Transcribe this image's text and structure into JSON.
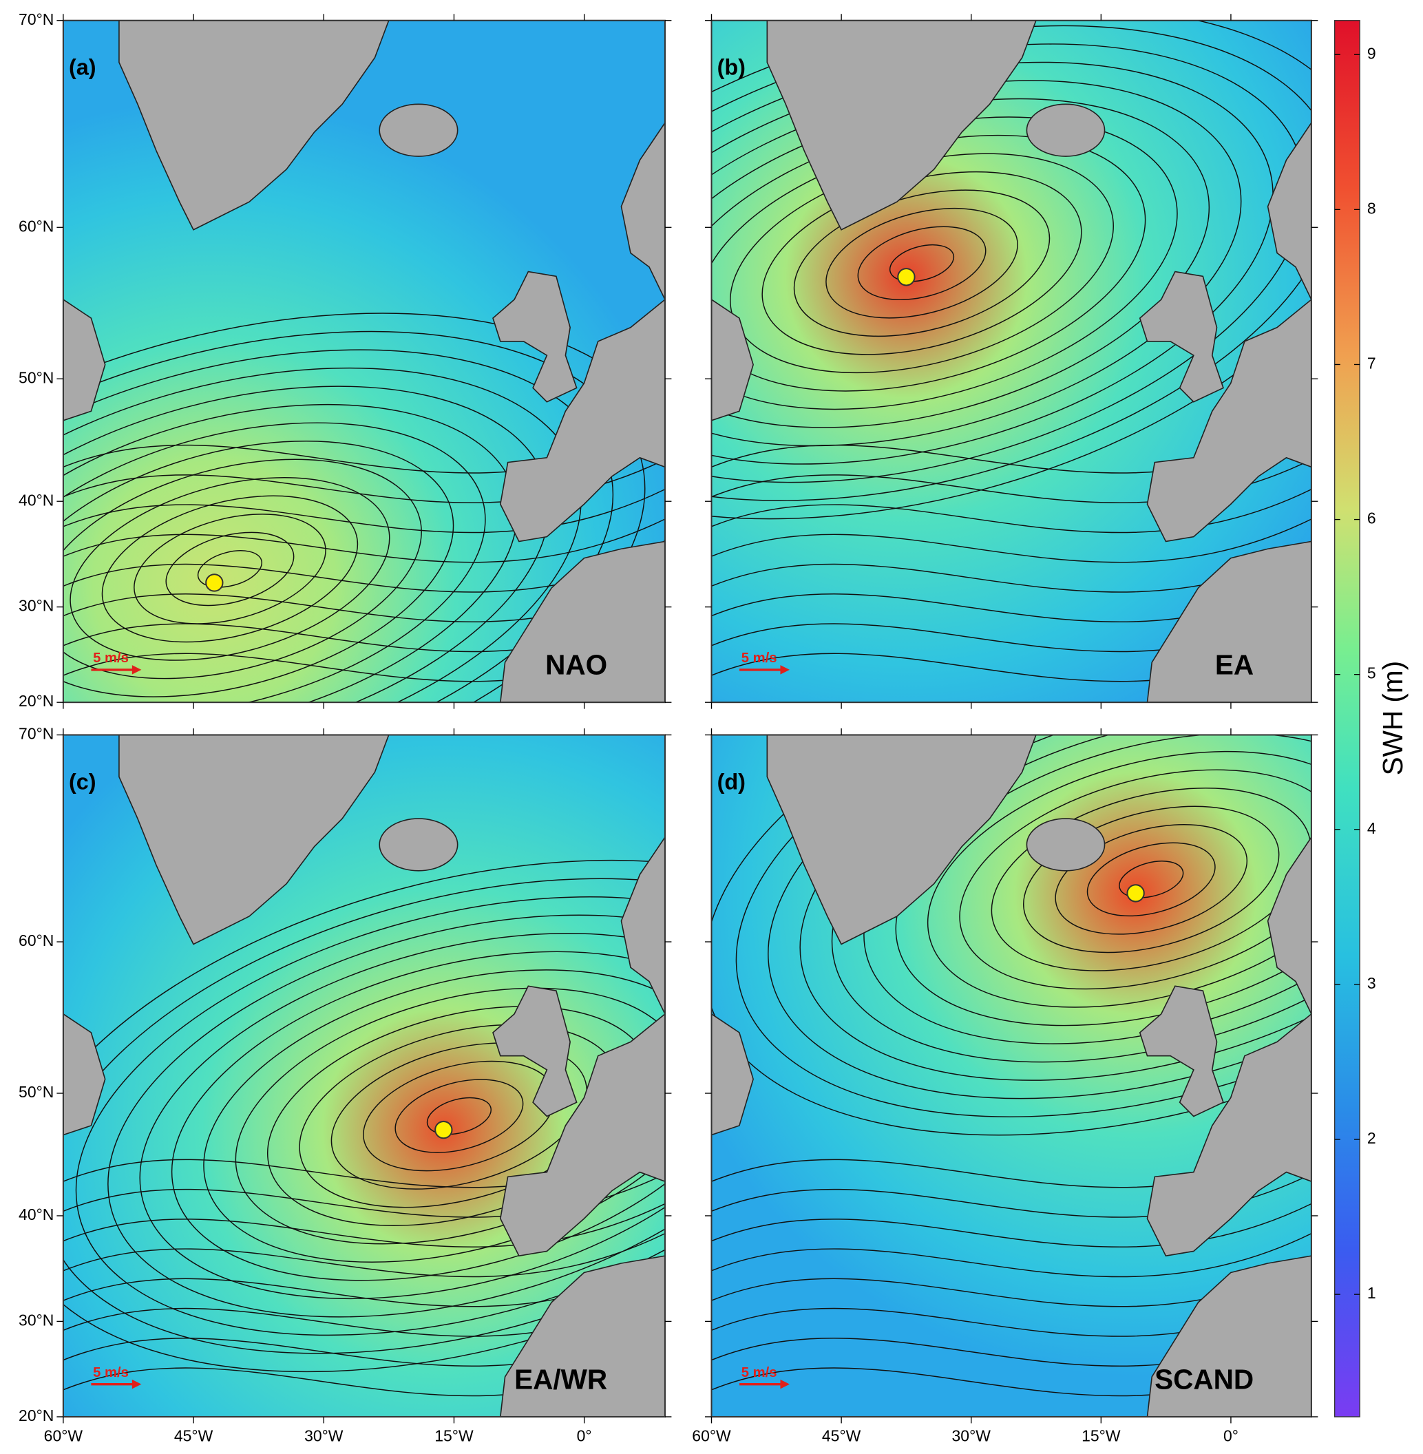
{
  "lonlim": [
    -60,
    9.3
  ],
  "latlim": [
    20,
    70
  ],
  "lon_ticks": [
    {
      "value": -60,
      "label": "60°W"
    },
    {
      "value": -45,
      "label": "45°W"
    },
    {
      "value": -30,
      "label": "30°W"
    },
    {
      "value": -15,
      "label": "15°W"
    },
    {
      "value": 0,
      "label": "0°"
    }
  ],
  "lat_ticks": [
    {
      "value": 70,
      "label": "70°N"
    },
    {
      "value": 60,
      "label": "60°N"
    },
    {
      "value": 50,
      "label": "50°N"
    },
    {
      "value": 40,
      "label": "40°N"
    },
    {
      "value": 30,
      "label": "30°N"
    },
    {
      "value": 20,
      "label": "20°N"
    }
  ],
  "scale_label": "5 m/s",
  "panels": [
    {
      "tag": "(a)",
      "name": "NAO",
      "marker": {
        "lon": -42.6,
        "lat": 32.4
      }
    },
    {
      "tag": "(b)",
      "name": "EA",
      "marker": {
        "lon": -37.5,
        "lat": 57
      }
    },
    {
      "tag": "(c)",
      "name": "EA/WR",
      "marker": {
        "lon": -16.2,
        "lat": 47.2
      }
    },
    {
      "tag": "(d)",
      "name": "SCAND",
      "marker": {
        "lon": -11,
        "lat": 62.7
      }
    }
  ],
  "colorbar": {
    "label": "SWH (m)",
    "lim": [
      0.21,
      9.22
    ],
    "ticks": [
      1,
      2,
      3,
      4,
      5,
      6,
      7,
      8,
      9
    ]
  }
}
